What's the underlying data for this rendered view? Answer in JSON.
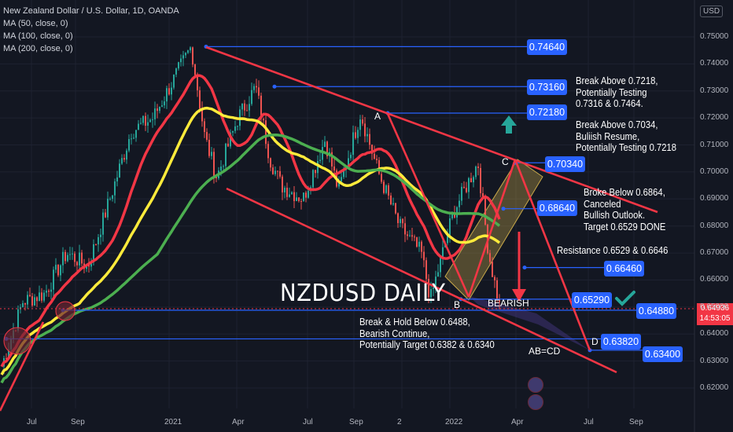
{
  "header": {
    "symbol_line": "New Zealand Dollar / U.S. Dollar, 1D, OANDA",
    "ma50": "MA (50, close, 0)",
    "ma100": "MA (100, close, 0)",
    "ma200": "MA (200, close, 0)"
  },
  "currency_badge": "USD",
  "chart_title": "NZDUSD DAILY",
  "current_price": {
    "value": "0.64936",
    "countdown": "14:53:05"
  },
  "pivots": {
    "a": "A",
    "b": "B",
    "c": "C",
    "d": "D"
  },
  "bearish_label": "BEARISH",
  "abcd_label": "AB=CD",
  "levels": {
    "l1": "0.74640",
    "l2": "0.73160",
    "l3": "0.72180",
    "l4": "0.70340",
    "l5": "0.68640",
    "l6": "0.66460",
    "l7": "0.65290",
    "l8": "0.64880",
    "l9": "0.63820",
    "l10": "0.63400"
  },
  "notes": {
    "n1": [
      "Break Above 0.7218,",
      "Potentially Testing",
      "0.7316 & 0.7464."
    ],
    "n2": [
      "Break Above 0.7034,",
      "Buliish Resume,",
      "Potentially Testing 0.7218"
    ],
    "n3": [
      "Broke Below 0.6864,",
      "Canceled",
      "Bullish Outlook.",
      "Target 0.6529 DONE"
    ],
    "n4": [
      "Resistance 0.6529 & 0.6646"
    ],
    "n5": [
      "Break & Hold Below 0.6488,",
      "Bearish Continue,",
      "Potentially Target 0.6382 & 0.6340"
    ]
  },
  "y_axis": [
    "0.75000",
    "0.74000",
    "0.73000",
    "0.72000",
    "0.71000",
    "0.70000",
    "0.69000",
    "0.68000",
    "0.67000",
    "0.66000",
    "0.65000",
    "0.64000",
    "0.63000",
    "0.62000"
  ],
  "x_axis": [
    "Jul",
    "Sep",
    "2021",
    "Apr",
    "Jul",
    "Sep",
    "2",
    "2022",
    "Apr",
    "Jul",
    "Sep"
  ],
  "colors": {
    "background": "#131722",
    "up_candle": "#26a69a",
    "down_candle": "#ef5350",
    "ma50": "#f23645",
    "ma100": "#ffeb3b",
    "ma200": "#4caf50",
    "trend_lines": "#f23645",
    "level_lines": "#2962ff"
  },
  "chart_data": {
    "type": "candlestick",
    "symbol": "NZDUSD",
    "timeframe": "1D",
    "y_range": [
      0.615,
      0.753
    ],
    "x_range": [
      "2020-06",
      "2022-10"
    ],
    "price_path": [
      [
        "2020-06-01",
        0.628
      ],
      [
        "2020-07-01",
        0.652
      ],
      [
        "2020-08-01",
        0.655
      ],
      [
        "2020-09-01",
        0.67
      ],
      [
        "2020-10-01",
        0.665
      ],
      [
        "2020-11-01",
        0.69
      ],
      [
        "2020-12-01",
        0.715
      ],
      [
        "2021-01-01",
        0.72
      ],
      [
        "2021-02-24",
        0.7464
      ],
      [
        "2021-03-15",
        0.713
      ],
      [
        "2021-04-01",
        0.698
      ],
      [
        "2021-05-01",
        0.72
      ],
      [
        "2021-05-26",
        0.7316
      ],
      [
        "2021-06-15",
        0.705
      ],
      [
        "2021-07-01",
        0.695
      ],
      [
        "2021-08-01",
        0.69
      ],
      [
        "2021-09-01",
        0.712
      ],
      [
        "2021-09-20",
        0.693
      ],
      [
        "2021-10-21",
        0.7218
      ],
      [
        "2021-11-15",
        0.7
      ],
      [
        "2021-12-15",
        0.68
      ],
      [
        "2022-01-15",
        0.67
      ],
      [
        "2022-01-28",
        0.6529
      ],
      [
        "2022-03-01",
        0.685
      ],
      [
        "2022-04-05",
        0.7034
      ],
      [
        "2022-04-20",
        0.67
      ],
      [
        "2022-05-06",
        0.6494
      ]
    ],
    "moving_averages": [
      {
        "name": "MA (50, close, 0)",
        "period": 50
      },
      {
        "name": "MA (100, close, 0)",
        "period": 100
      },
      {
        "name": "MA (200, close, 0)",
        "period": 200
      }
    ],
    "horizontal_levels": [
      0.7464,
      0.7316,
      0.7218,
      0.7034,
      0.6864,
      0.6646,
      0.6529,
      0.6488,
      0.6382,
      0.634
    ],
    "pattern": "AB=CD",
    "pivots": {
      "A": 0.7218,
      "B": 0.6529,
      "C": 0.7034,
      "D": 0.6382
    },
    "current_price": 0.64936
  }
}
